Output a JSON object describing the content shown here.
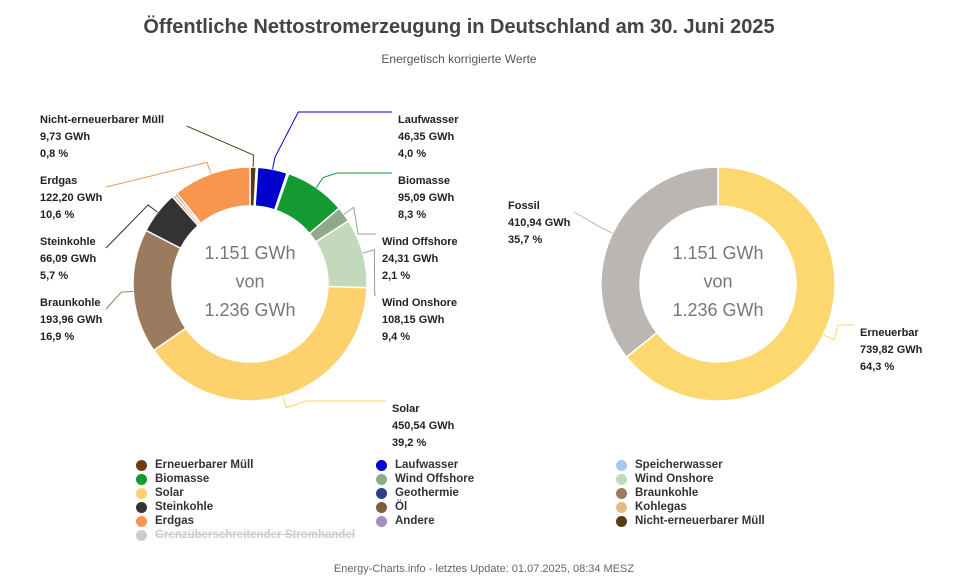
{
  "title": "Öffentliche Nettostromerzeugung in Deutschland am 30. Juni 2025",
  "subtitle": "Energetisch korrigierte Werte",
  "credits": "Energy-Charts.info - letztes Update: 01.07.2025, 08:34 MESZ",
  "chart_data": [
    {
      "type": "pie",
      "variant": "donut",
      "center_text": [
        "1.151 GWh",
        "von",
        "1.236 GWh"
      ],
      "unit": "GWh",
      "slices": [
        {
          "name": "Nicht-erneuerbarer Müll",
          "value": 9.73,
          "value_label": "9,73 GWh",
          "percent_label": "0,8 %",
          "color": "#5a3a16",
          "label_side": "left"
        },
        {
          "name": "Erneuerbarer Müll",
          "value": 2.0,
          "value_label": "",
          "percent_label": "",
          "color": "#6b3e0f",
          "label_side": "none"
        },
        {
          "name": "Laufwasser",
          "value": 46.35,
          "value_label": "46,35 GWh",
          "percent_label": "4,0 %",
          "color": "#0000cc",
          "label_side": "right"
        },
        {
          "name": "Speicherwasser",
          "value": 2.5,
          "value_label": "",
          "percent_label": "",
          "color": "#a8c8f0",
          "label_side": "none"
        },
        {
          "name": "Biomasse",
          "value": 95.09,
          "value_label": "95,09 GWh",
          "percent_label": "8,3 %",
          "color": "#139a33",
          "label_side": "right"
        },
        {
          "name": "Wind Offshore",
          "value": 24.31,
          "value_label": "24,31 GWh",
          "percent_label": "2,1 %",
          "color": "#8faa8b",
          "label_side": "right"
        },
        {
          "name": "Wind Onshore",
          "value": 108.15,
          "value_label": "108,15 GWh",
          "percent_label": "9,4 %",
          "color": "#c3d9bb",
          "label_side": "right"
        },
        {
          "name": "Solar",
          "value": 450.54,
          "value_label": "450,54 GWh",
          "percent_label": "39,2 %",
          "color": "#fdd26e",
          "label_side": "right"
        },
        {
          "name": "Braunkohle",
          "value": 193.96,
          "value_label": "193,96 GWh",
          "percent_label": "16,9 %",
          "color": "#9a7b60",
          "label_side": "left"
        },
        {
          "name": "Steinkohle",
          "value": 66.09,
          "value_label": "66,09 GWh",
          "percent_label": "5,7 %",
          "color": "#333333",
          "label_side": "left"
        },
        {
          "name": "Kohlegas",
          "value": 5.0,
          "value_label": "",
          "percent_label": "",
          "color": "#e1bd84",
          "label_side": "none"
        },
        {
          "name": "Öl",
          "value": 3.5,
          "value_label": "",
          "percent_label": "",
          "color": "#7c5f3a",
          "label_side": "none"
        },
        {
          "name": "Erdgas",
          "value": 122.2,
          "value_label": "122,20 GWh",
          "percent_label": "10,6 %",
          "color": "#f8964f",
          "label_side": "left"
        }
      ]
    },
    {
      "type": "pie",
      "variant": "donut",
      "center_text": [
        "1.151 GWh",
        "von",
        "1.236 GWh"
      ],
      "unit": "GWh",
      "slices": [
        {
          "name": "Erneuerbar",
          "value": 739.82,
          "value_label": "739,82 GWh",
          "percent_label": "64,3 %",
          "color": "#fdd86f",
          "label_side": "right"
        },
        {
          "name": "Fossil",
          "value": 410.94,
          "value_label": "410,94 GWh",
          "percent_label": "35,7 %",
          "color": "#bcb6b3",
          "label_side": "left"
        }
      ]
    }
  ],
  "legend": {
    "items": [
      {
        "label": "Erneuerbarer Müll",
        "color": "#6b3e0f",
        "hidden": false
      },
      {
        "label": "Laufwasser",
        "color": "#0000cc",
        "hidden": false
      },
      {
        "label": "Speicherwasser",
        "color": "#a8c8f0",
        "hidden": false
      },
      {
        "label": "Biomasse",
        "color": "#139a33",
        "hidden": false
      },
      {
        "label": "Wind Offshore",
        "color": "#8faa8b",
        "hidden": false
      },
      {
        "label": "Wind Onshore",
        "color": "#c3d9bb",
        "hidden": false
      },
      {
        "label": "Solar",
        "color": "#fdd26e",
        "hidden": false
      },
      {
        "label": "Geothermie",
        "color": "#303c8c",
        "hidden": false
      },
      {
        "label": "Braunkohle",
        "color": "#9a7b60",
        "hidden": false
      },
      {
        "label": "Steinkohle",
        "color": "#333333",
        "hidden": false
      },
      {
        "label": "Öl",
        "color": "#7c5f3a",
        "hidden": false
      },
      {
        "label": "Kohlegas",
        "color": "#e1bd84",
        "hidden": false
      },
      {
        "label": "Erdgas",
        "color": "#f8964f",
        "hidden": false
      },
      {
        "label": "Andere",
        "color": "#a98ac4",
        "hidden": false
      },
      {
        "label": "Nicht-erneuerbarer Müll",
        "color": "#5a3a16",
        "hidden": false
      },
      {
        "label": "Grenzüberschreitender Stromhandel",
        "color": "#cccccc",
        "hidden": true
      }
    ]
  }
}
